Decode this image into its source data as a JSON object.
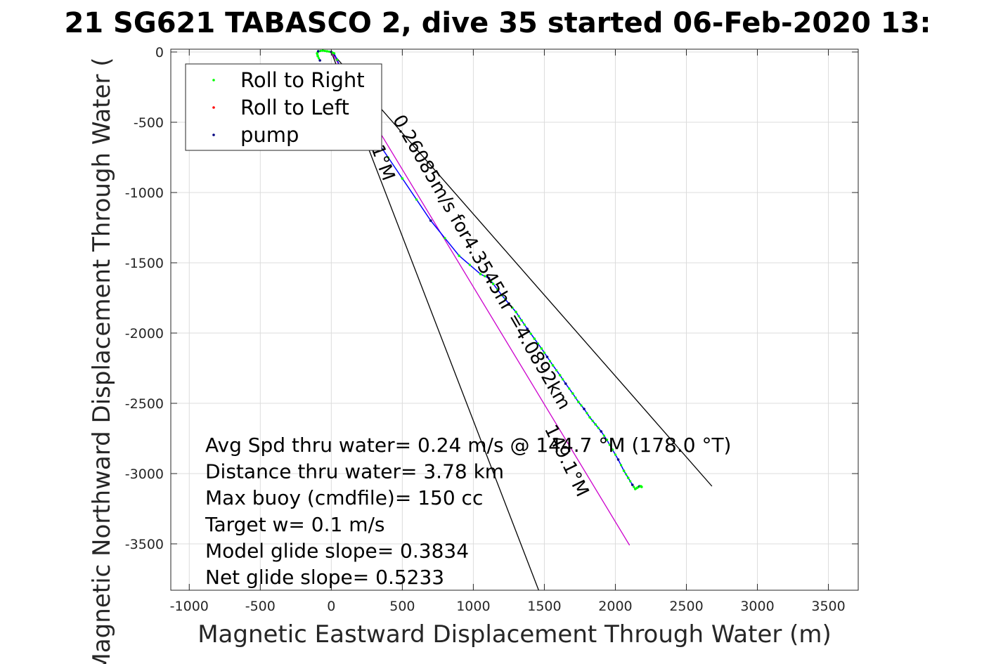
{
  "chart_data": {
    "type": "scatter",
    "title": "21 SG621 TABASCO 2, dive 35 started 06-Feb-2020 13:",
    "xlabel": "Magnetic Eastward Displacement Through Water (m)",
    "ylabel": "Magnetic Northward Displacement Through Water (",
    "xlim": [
      -1130,
      3710
    ],
    "ylim": [
      -3830,
      20
    ],
    "xticks": [
      -1000,
      -500,
      0,
      500,
      1000,
      1500,
      2000,
      2500,
      3000,
      3500
    ],
    "yticks": [
      0,
      -500,
      -1000,
      -1500,
      -2000,
      -2500,
      -3000,
      -3500
    ],
    "grid": true,
    "legend_position": "top-left",
    "series": [
      {
        "name": "Roll to Right",
        "color": "#00ff00"
      },
      {
        "name": "Roll to Left",
        "color": "#ff0000"
      },
      {
        "name": "pump",
        "color": "#000080"
      }
    ],
    "track": {
      "color_line": "#0000ff",
      "x": [
        -80,
        -95,
        -100,
        -92,
        -60,
        -30,
        0,
        20,
        60,
        150,
        300,
        500,
        700,
        900,
        1050,
        1110,
        1140,
        1200,
        1250,
        1300,
        1340,
        1380,
        1430,
        1480,
        1520,
        1560,
        1610,
        1650,
        1700,
        1740,
        1780,
        1820,
        1860,
        1900,
        1940,
        1980,
        2020,
        2060,
        2090,
        2120,
        2140,
        2155,
        2170,
        2180,
        2185
      ],
      "y": [
        -60,
        -30,
        -10,
        5,
        10,
        5,
        0,
        -10,
        -100,
        -300,
        -600,
        -900,
        -1200,
        -1450,
        -1580,
        -1610,
        -1650,
        -1730,
        -1790,
        -1850,
        -1910,
        -1970,
        -2040,
        -2110,
        -2170,
        -2230,
        -2300,
        -2360,
        -2430,
        -2490,
        -2540,
        -2600,
        -2650,
        -2700,
        -2760,
        -2830,
        -2900,
        -2980,
        -3030,
        -3080,
        -3110,
        -3100,
        -3090,
        -3090,
        -3095
      ]
    },
    "reference_lines": [
      {
        "color": "#000000",
        "x": [
          0,
          1460
        ],
        "y": [
          0,
          -3830
        ]
      },
      {
        "color": "#000000",
        "x": [
          0,
          2680
        ],
        "y": [
          0,
          -3090
        ]
      },
      {
        "color": "#cc00cc",
        "x": [
          0,
          2100
        ],
        "y": [
          0,
          -3510
        ]
      }
    ],
    "line_labels": [
      {
        "text": "0.26085m/s for4.3545hr =4.0892km",
        "x": 430,
        "y": -480,
        "angle": 60
      },
      {
        "text": "1°M",
        "x": 280,
        "y": -680,
        "angle": 70
      },
      {
        "text": "149.1°M",
        "x": 1500,
        "y": -2680,
        "angle": 64
      }
    ],
    "annotations": [
      "Avg Spd thru water=  0.24 m/s @ 144.7 °M (178.0 °T)",
      "Distance thru water=  3.78 km",
      "Max buoy (cmdfile)= 150 cc",
      "Target w= 0.1 m/s",
      "Model glide slope= 0.3834",
      "Net glide slope= 0.5233"
    ]
  }
}
